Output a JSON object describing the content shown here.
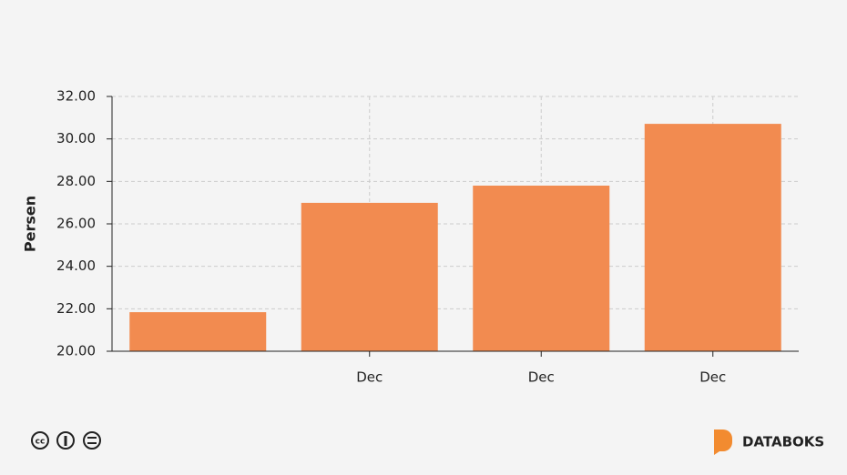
{
  "chart_data": {
    "type": "bar",
    "y_label": "Persen",
    "categories": [
      null,
      "Dec",
      "Dec",
      "Dec"
    ],
    "values": [
      21.84,
      26.99,
      27.8,
      30.71
    ],
    "color": "#f28b50",
    "ylim": [
      20,
      32
    ],
    "yticks": [
      {
        "value": 20,
        "label": "20.00"
      },
      {
        "value": 22,
        "label": "22.00"
      },
      {
        "value": 24,
        "label": "24.00"
      },
      {
        "value": 26,
        "label": "26.00"
      },
      {
        "value": 28,
        "label": "28.00"
      },
      {
        "value": 30,
        "label": "30.00"
      },
      {
        "value": 32,
        "label": "32.00"
      }
    ],
    "grid": true
  },
  "footer": {
    "brand": "DATABOKS"
  }
}
